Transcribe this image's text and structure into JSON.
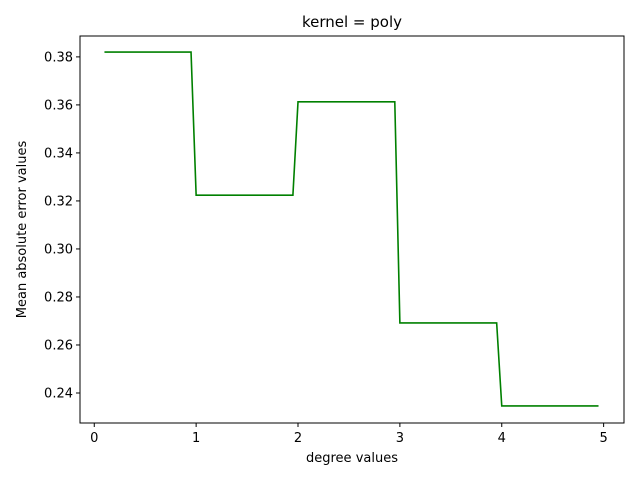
{
  "chart_data": {
    "type": "line",
    "title": "kernel = poly",
    "xlabel": "degree values",
    "ylabel": "Mean absolute error values",
    "xlim": [
      -0.14,
      5.2
    ],
    "ylim": [
      0.2275,
      0.3887
    ],
    "xticks": [
      0,
      1,
      2,
      3,
      4,
      5
    ],
    "yticks": [
      0.24,
      0.26,
      0.28,
      0.3,
      0.32,
      0.34,
      0.36,
      0.38
    ],
    "ytick_labels": [
      "0.24",
      "0.26",
      "0.28",
      "0.30",
      "0.32",
      "0.34",
      "0.36",
      "0.38"
    ],
    "grid": false,
    "series": [
      {
        "color": "#008000",
        "x": [
          0.1,
          0.95,
          1.0,
          1.95,
          2.0,
          2.95,
          3.0,
          3.95,
          4.0,
          4.95
        ],
        "y": [
          0.382,
          0.382,
          0.3224,
          0.3224,
          0.3613,
          0.3613,
          0.2692,
          0.2692,
          0.2346,
          0.2346
        ]
      }
    ]
  }
}
